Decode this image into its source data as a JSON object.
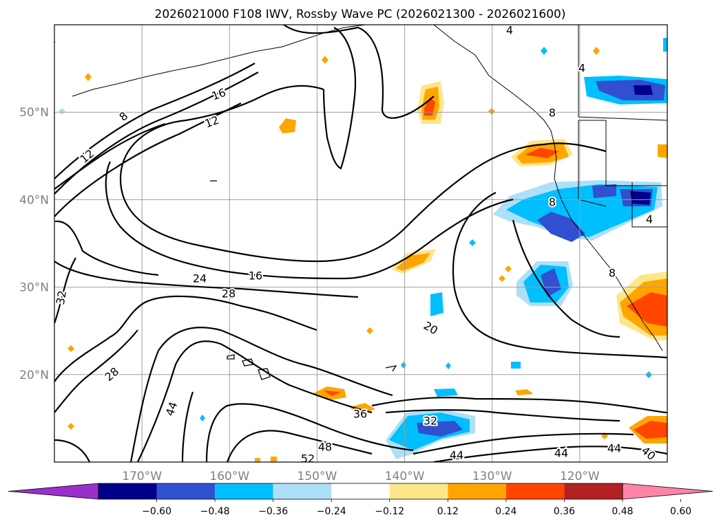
{
  "title": "2026021000 F108 IWV, Rossby Wave PC (2026021300 - 2026021600)",
  "map": {
    "lon_range": [
      -180,
      -110
    ],
    "lat_range": [
      10,
      60
    ],
    "lat_ticks": [
      {
        "label": "50°N",
        "value": 50
      },
      {
        "label": "40°N",
        "value": 40
      },
      {
        "label": "30°N",
        "value": 30
      },
      {
        "label": "20°N",
        "value": 20
      }
    ],
    "lon_ticks": [
      {
        "label": "170°W",
        "value": -170
      },
      {
        "label": "160°W",
        "value": -160
      },
      {
        "label": "150°W",
        "value": -150
      },
      {
        "label": "140°W",
        "value": -140
      },
      {
        "label": "130°W",
        "value": -130
      },
      {
        "label": "120°W",
        "value": -120
      }
    ],
    "gridlines": true,
    "contour_labels": [
      "4",
      "8",
      "12",
      "16",
      "12",
      "8",
      "24",
      "28",
      "16",
      "32",
      "20",
      "28",
      "44",
      "36",
      "32",
      "48",
      "52",
      "44",
      "44",
      "44",
      "40",
      "8",
      "4",
      "4",
      "8"
    ]
  },
  "colorbar": {
    "ticks": [
      "−0.60",
      "−0.48",
      "−0.36",
      "−0.24",
      "−0.12",
      "0.12",
      "0.24",
      "0.36",
      "0.48",
      "0.60"
    ],
    "colors": [
      "#9a30cc",
      "#00008b",
      "#3050d0",
      "#00bfff",
      "#ade0f8",
      "#ffffff",
      "#fde68a",
      "#ffa500",
      "#ff4500",
      "#b22222",
      "#ff85a8"
    ]
  }
}
